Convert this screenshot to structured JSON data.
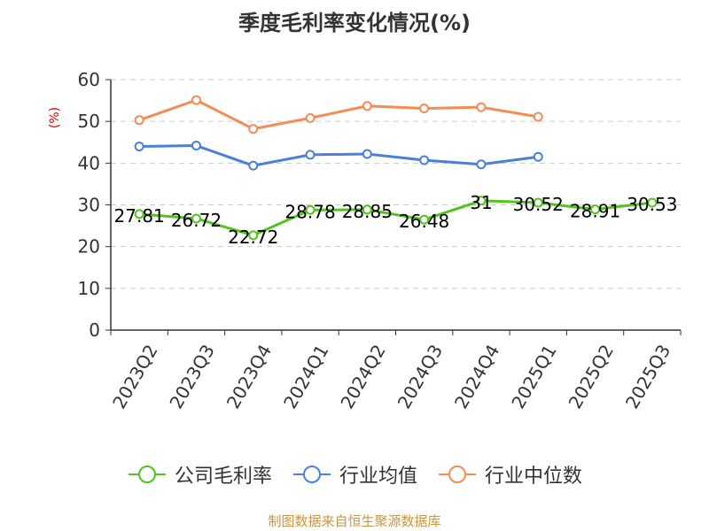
{
  "title": "季度毛利率变化情况(%)",
  "source_note": "制图数据来自恒生聚源数据库",
  "colors": {
    "series_green": "#52c41a",
    "series_blue": "#4a7fdc",
    "series_orange": "#f78b55",
    "axis": "#333333",
    "grid": "#cccccc",
    "ylabel": "#d40000",
    "source": "#c8963e"
  },
  "chart_data": {
    "type": "line",
    "title": "季度毛利率变化情况(%)",
    "ylabel": "(%)",
    "xlabel": "",
    "categories": [
      "2023Q2",
      "2023Q3",
      "2023Q4",
      "2024Q1",
      "2024Q2",
      "2024Q3",
      "2024Q4",
      "2025Q1",
      "2025Q2",
      "2025Q3"
    ],
    "ylim": [
      0,
      60
    ],
    "yticks": [
      0,
      10,
      20,
      30,
      40,
      50,
      60
    ],
    "grid": true,
    "legend_position": "bottom",
    "series": [
      {
        "name": "公司毛利率",
        "color": "#52c41a",
        "labels": true,
        "values": [
          27.81,
          26.72,
          22.72,
          28.78,
          28.85,
          26.48,
          31,
          30.52,
          28.91,
          30.53
        ]
      },
      {
        "name": "行业均值",
        "color": "#4a7fdc",
        "labels": false,
        "values": [
          44.0,
          44.2,
          39.4,
          42.0,
          42.2,
          40.7,
          39.7,
          41.5,
          null,
          null
        ]
      },
      {
        "name": "行业中位数",
        "color": "#f78b55",
        "labels": false,
        "values": [
          50.3,
          55.1,
          48.2,
          50.8,
          53.7,
          53.1,
          53.4,
          51.1,
          null,
          null
        ]
      }
    ]
  }
}
